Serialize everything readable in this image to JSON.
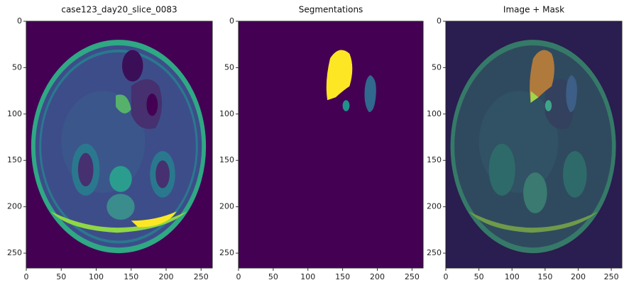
{
  "chart_data": [
    {
      "type": "image",
      "title": "case123_day20_slice_0083",
      "xlim": [
        0,
        266
      ],
      "ylim": [
        266,
        0
      ],
      "xticks": [
        0,
        50,
        100,
        150,
        200,
        250
      ],
      "yticks": [
        0,
        50,
        100,
        150,
        200,
        250
      ]
    },
    {
      "type": "image",
      "title": "Segmentations",
      "xlim": [
        0,
        266
      ],
      "ylim": [
        266,
        0
      ],
      "xticks": [
        0,
        50,
        100,
        150,
        200,
        250
      ],
      "yticks": [
        0,
        50,
        100,
        150,
        200,
        250
      ]
    },
    {
      "type": "image",
      "title": "Image + Mask",
      "xlim": [
        0,
        266
      ],
      "ylim": [
        266,
        0
      ],
      "xticks": [
        0,
        50,
        100,
        150,
        200,
        250
      ],
      "yticks": [
        0,
        50,
        100,
        150,
        200,
        250
      ]
    }
  ]
}
